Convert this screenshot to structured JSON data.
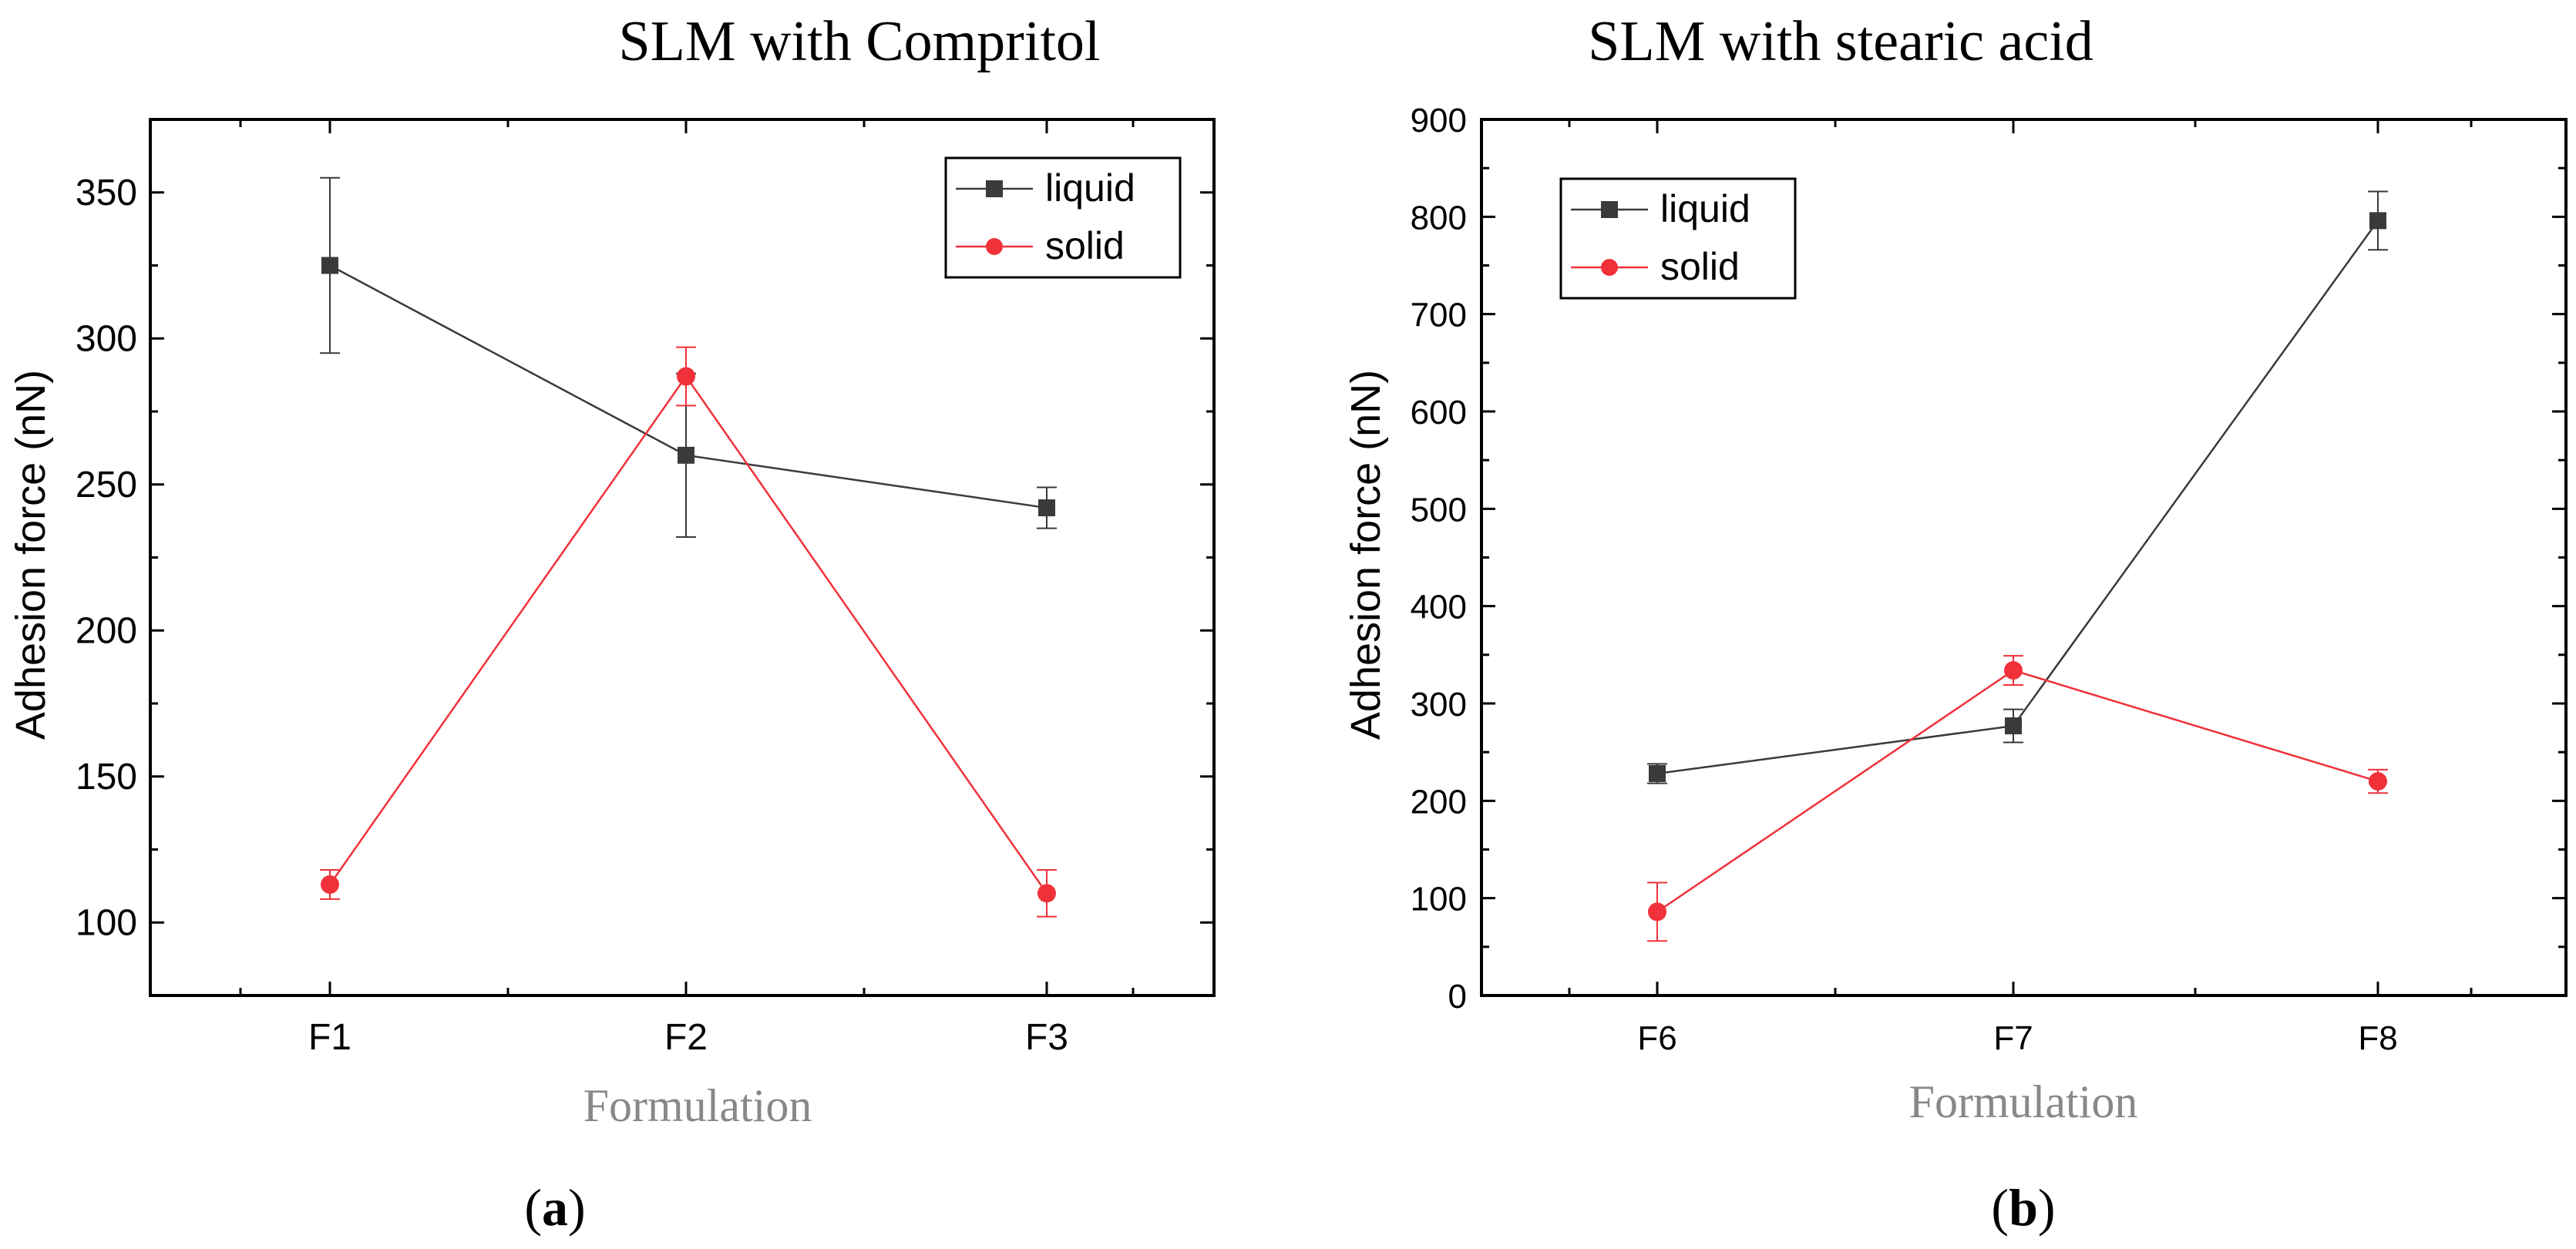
{
  "chart_data": [
    {
      "type": "line",
      "title": "SLM with Compritol",
      "xlabel": "Formulation",
      "ylabel": "Adhesion force (nN)",
      "panel_label": "a",
      "categories": [
        "F1",
        "F2",
        "F3"
      ],
      "ylim": [
        75,
        375
      ],
      "yticks": [
        "100",
        "150",
        "200",
        "250",
        "300",
        "350"
      ],
      "ytick_values": [
        100,
        150,
        200,
        250,
        300,
        350
      ],
      "legend_position": "top-right",
      "series": [
        {
          "name": "liquid",
          "color": "#3a3a3a",
          "marker": "square",
          "values": [
            325,
            260,
            242
          ],
          "errors": [
            30,
            28,
            7
          ]
        },
        {
          "name": "solid",
          "color": "#f0313a",
          "marker": "circle",
          "values": [
            113,
            287,
            110
          ],
          "errors": [
            5,
            10,
            8
          ]
        }
      ]
    },
    {
      "type": "line",
      "title": "SLM with stearic acid",
      "xlabel": "Formulation",
      "ylabel": "Adhesion force (nN)",
      "panel_label": "b",
      "categories": [
        "F6",
        "F7",
        "F8"
      ],
      "ylim": [
        0,
        900
      ],
      "yticks": [
        "0",
        "100",
        "200",
        "300",
        "400",
        "500",
        "600",
        "700",
        "800",
        "900"
      ],
      "ytick_values": [
        0,
        100,
        200,
        300,
        400,
        500,
        600,
        700,
        800,
        900
      ],
      "legend_position": "top-left",
      "series": [
        {
          "name": "liquid",
          "color": "#3a3a3a",
          "marker": "square",
          "values": [
            228,
            277,
            796
          ],
          "errors": [
            10,
            17,
            30
          ]
        },
        {
          "name": "solid",
          "color": "#f0313a",
          "marker": "circle",
          "values": [
            86,
            334,
            220
          ],
          "errors": [
            30,
            15,
            12
          ]
        }
      ]
    }
  ]
}
